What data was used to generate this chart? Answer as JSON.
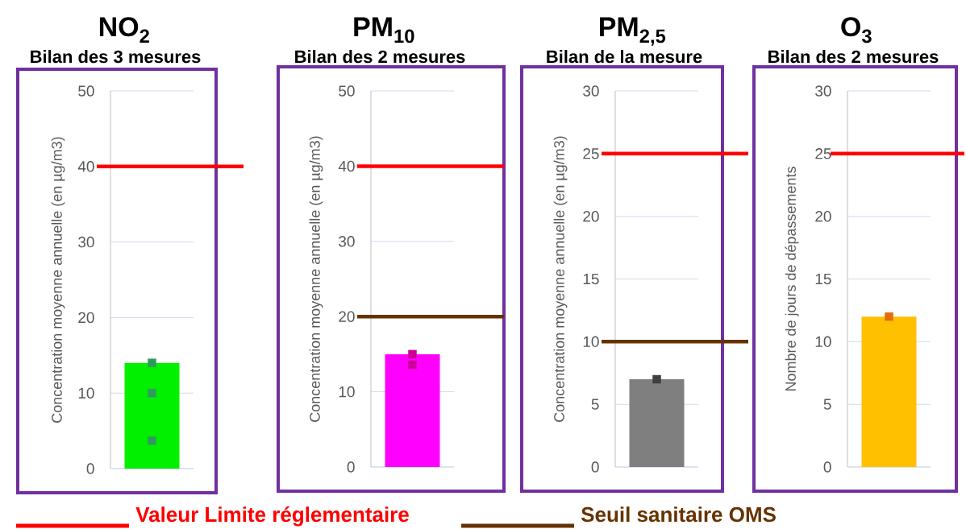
{
  "chart_data": [
    {
      "type": "bar",
      "title": "NO$_{2}$",
      "subtitle": "Bilan des 3 mesures",
      "ylabel": "Concentration moyenne annuelle (en µg/m3)",
      "categories": [
        null
      ],
      "series": [
        {
          "color": "#00f000",
          "values": [
            14
          ]
        },
        {
          "type": "scatter",
          "marker": "square",
          "color": "#2e9b5c",
          "x": [
            null,
            null,
            null
          ],
          "values": [
            14,
            10,
            3.7
          ]
        }
      ],
      "ylim": [
        0,
        50
      ],
      "yticks": [
        0,
        10,
        20,
        30,
        40,
        50
      ],
      "grid": "y",
      "ref_lines": [
        {
          "axis": "y",
          "value": 40,
          "color": "#ff0000",
          "label": "Valeur Limite réglementaire"
        }
      ]
    },
    {
      "type": "bar",
      "title": "PM$_{10}$",
      "subtitle": "Bilan des 2 mesures",
      "ylabel": "Concentration moyenne annuelle (en µg/m3)",
      "categories": [
        null
      ],
      "series": [
        {
          "color": "#ff00ff",
          "values": [
            15
          ]
        },
        {
          "type": "scatter",
          "marker": "square",
          "color": "#cc0099",
          "x": [
            null,
            null
          ],
          "values": [
            15,
            13.6
          ]
        }
      ],
      "ylim": [
        0,
        50
      ],
      "yticks": [
        0,
        10,
        20,
        30,
        40,
        50
      ],
      "grid": "y",
      "ref_lines": [
        {
          "axis": "y",
          "value": 40,
          "color": "#ff0000"
        },
        {
          "axis": "y",
          "value": 20,
          "color": "#663300"
        }
      ]
    },
    {
      "type": "bar",
      "title": "PM$_{2,5}$",
      "subtitle": "Bilan de la mesure",
      "ylabel": "Concentration moyenne annuelle (en µg/m3)",
      "categories": [
        null
      ],
      "series": [
        {
          "color": "#7f7f7f",
          "values": [
            7
          ]
        },
        {
          "type": "scatter",
          "marker": "square",
          "color": "#404040",
          "x": [
            null
          ],
          "values": [
            7
          ]
        }
      ],
      "ylim": [
        0,
        30
      ],
      "yticks": [
        0,
        5,
        10,
        15,
        20,
        25,
        30
      ],
      "grid": "y",
      "ref_lines": [
        {
          "axis": "y",
          "value": 25,
          "color": "#ff0000"
        },
        {
          "axis": "y",
          "value": 10,
          "color": "#663300",
          "label": "Seuil sanitaire OMS"
        }
      ]
    },
    {
      "type": "bar",
      "title": "O$_{3}$",
      "subtitle": "Bilan des 2 mesures",
      "ylabel": "Nombre de jours de dépassements",
      "categories": [
        null
      ],
      "series": [
        {
          "color": "#ffc000",
          "values": [
            12
          ]
        },
        {
          "type": "scatter",
          "marker": "square",
          "color": "#e46c0a",
          "x": [
            null
          ],
          "values": [
            12
          ]
        }
      ],
      "ylim": [
        0,
        30
      ],
      "yticks": [
        0,
        5,
        10,
        15,
        20,
        25,
        30
      ],
      "grid": "y",
      "ref_lines": [
        {
          "axis": "y",
          "value": 25,
          "color": "#ff0000"
        }
      ]
    }
  ]
}
